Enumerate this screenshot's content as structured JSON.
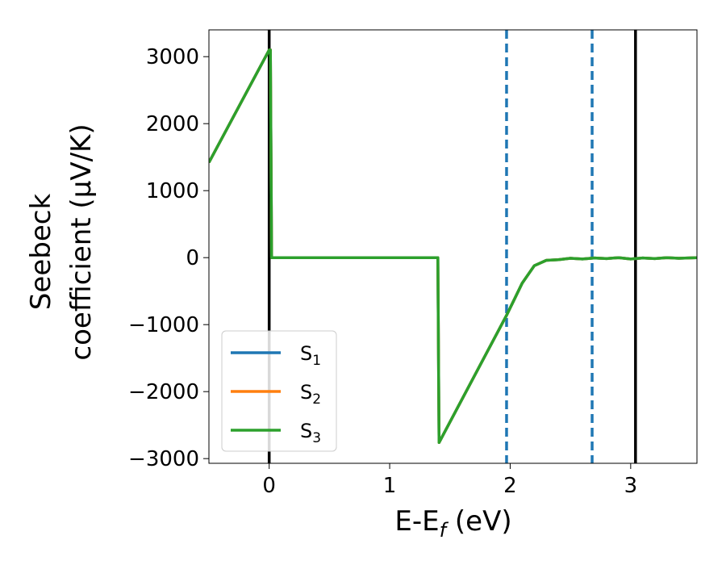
{
  "chart_data": {
    "type": "line",
    "xlabel": "E-E",
    "xlabel_sub": "f",
    "xlabel_unit": " (eV)",
    "ylabel_line1": "Seebeck",
    "ylabel_line2": "coefficient  (μV/K)",
    "xlim": [
      -0.5,
      3.55
    ],
    "ylim": [
      -3070,
      3400
    ],
    "x_ticks": [
      0,
      1,
      2,
      3
    ],
    "x_tick_labels": [
      "0",
      "1",
      "2",
      "3"
    ],
    "y_ticks": [
      -3000,
      -2000,
      -1000,
      0,
      1000,
      2000,
      3000
    ],
    "y_tick_labels": [
      "−3000",
      "−2000",
      "−1000",
      "0",
      "1000",
      "2000",
      "3000"
    ],
    "grid": false,
    "legend_position": "lower-left",
    "vlines": [
      {
        "x": 0.0,
        "style": "solid",
        "color": "#000000"
      },
      {
        "x": 3.04,
        "style": "solid",
        "color": "#000000"
      },
      {
        "x": 1.97,
        "style": "dashed",
        "color": "#1f77b4"
      },
      {
        "x": 2.68,
        "style": "dashed",
        "color": "#1f77b4"
      }
    ],
    "series": [
      {
        "name": "S",
        "sub": "1",
        "color": "#1f77b4",
        "x": [
          -0.5,
          0.0,
          0.01,
          0.02,
          1.39,
          1.4,
          1.41,
          1.97,
          2.1,
          2.2,
          2.3,
          2.4,
          2.5,
          2.6,
          2.7,
          2.8,
          2.9,
          3.0,
          3.1,
          3.2,
          3.3,
          3.4,
          3.55
        ],
        "y": [
          1420,
          3100,
          3100,
          0,
          0,
          0,
          -2760,
          -860,
          -380,
          -120,
          -40,
          -30,
          -10,
          -20,
          -5,
          -15,
          0,
          -20,
          -5,
          -15,
          0,
          -10,
          0
        ]
      },
      {
        "name": "S",
        "sub": "2",
        "color": "#ff7f0e",
        "x": [
          -0.5,
          0.0,
          0.01,
          0.02,
          1.39,
          1.4,
          1.41,
          1.97,
          2.1,
          2.2,
          2.3,
          2.4,
          2.5,
          2.6,
          2.7,
          2.8,
          2.9,
          3.0,
          3.1,
          3.2,
          3.3,
          3.4,
          3.55
        ],
        "y": [
          1420,
          3100,
          3100,
          0,
          0,
          0,
          -2760,
          -860,
          -380,
          -120,
          -40,
          -30,
          -10,
          -20,
          -5,
          -15,
          0,
          -20,
          -5,
          -15,
          0,
          -10,
          0
        ]
      },
      {
        "name": "S",
        "sub": "3",
        "color": "#2ca02c",
        "x": [
          -0.5,
          0.0,
          0.01,
          0.02,
          1.39,
          1.4,
          1.41,
          1.97,
          2.1,
          2.2,
          2.3,
          2.4,
          2.5,
          2.6,
          2.7,
          2.8,
          2.9,
          3.0,
          3.1,
          3.2,
          3.3,
          3.4,
          3.55
        ],
        "y": [
          1420,
          3100,
          3100,
          0,
          0,
          0,
          -2760,
          -860,
          -380,
          -120,
          -40,
          -30,
          -10,
          -20,
          -5,
          -15,
          0,
          -20,
          -5,
          -15,
          0,
          -10,
          0
        ]
      }
    ]
  }
}
